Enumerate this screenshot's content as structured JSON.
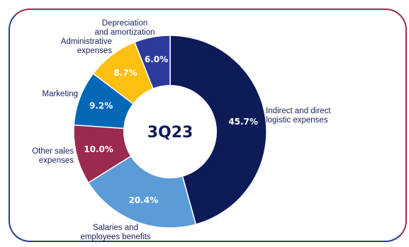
{
  "chart_data": {
    "type": "pie",
    "center_label": "3Q23",
    "categories": [
      [
        "Indirect and direct",
        "logistic expenses"
      ],
      [
        "Salaries and",
        "employees benefits"
      ],
      [
        "Other sales",
        "expenses"
      ],
      [
        "Marketing"
      ],
      [
        "Administrative",
        "expenses"
      ],
      [
        "Depreciation",
        "and amortization"
      ]
    ],
    "values": [
      45.7,
      20.4,
      10.0,
      9.2,
      8.7,
      6.0
    ],
    "value_labels": [
      "45.7%",
      "20.4%",
      "10.0%",
      "9.2%",
      "8.7%",
      "6.0%"
    ],
    "colors": [
      "#0d1b57",
      "#5b9bd8",
      "#9b2a4e",
      "#0468b8",
      "#fdc011",
      "#2b3a9b"
    ],
    "legend": "none"
  }
}
